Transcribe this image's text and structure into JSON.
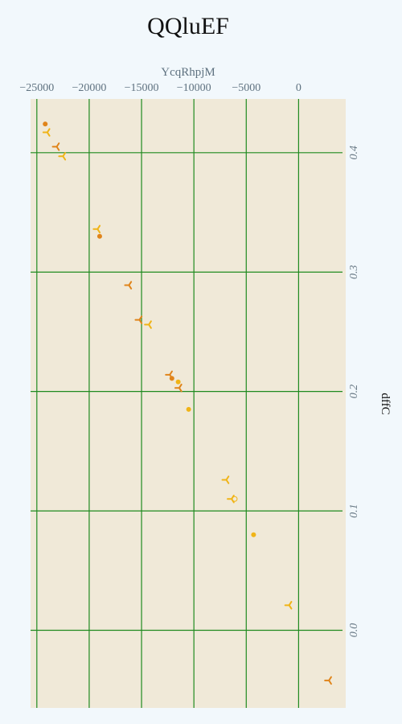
{
  "chart_data": {
    "type": "scatter",
    "title": "QQluEF",
    "xlabel": "YcqRhpjM",
    "ylabel": "dffC",
    "x_axis_position": "top",
    "y_axis_position": "right",
    "xlim": [
      -25600,
      4500
    ],
    "ylim": [
      -0.065,
      0.445
    ],
    "x_ticks": [
      -25000,
      -20000,
      -15000,
      -10000,
      -5000,
      0
    ],
    "x_tick_labels": [
      "−25000",
      "−20000",
      "−15000",
      "−10000",
      "−5000",
      "0"
    ],
    "y_ticks": [
      0.0,
      0.1,
      0.2,
      0.3,
      0.4
    ],
    "y_tick_labels": [
      "0.0",
      "0.1",
      "0.2",
      "0.3",
      "0.4"
    ],
    "grid": true,
    "colors": {
      "background": "#f2f8fc",
      "plot_area": "#f0e9d8",
      "grid": "#1f8a1f",
      "series_a": "#f0b417",
      "series_b": "#e0841a"
    },
    "points": [
      {
        "x": -24200,
        "y": 0.424,
        "marker": "circle",
        "color": "#e0841a"
      },
      {
        "x": -24000,
        "y": 0.417,
        "marker": "tri",
        "color": "#f0b417"
      },
      {
        "x": -23100,
        "y": 0.405,
        "marker": "tri",
        "color": "#e0841a"
      },
      {
        "x": -22500,
        "y": 0.397,
        "marker": "tri",
        "color": "#f0b417"
      },
      {
        "x": -19200,
        "y": 0.336,
        "marker": "tri",
        "color": "#f0b417"
      },
      {
        "x": -19000,
        "y": 0.33,
        "marker": "circle",
        "color": "#e0841a"
      },
      {
        "x": -16200,
        "y": 0.289,
        "marker": "tri",
        "color": "#e0841a"
      },
      {
        "x": -15200,
        "y": 0.26,
        "marker": "tri",
        "color": "#e0841a"
      },
      {
        "x": -14300,
        "y": 0.256,
        "marker": "tri",
        "color": "#f0b417"
      },
      {
        "x": -12300,
        "y": 0.214,
        "marker": "tri",
        "color": "#e0841a"
      },
      {
        "x": -12100,
        "y": 0.211,
        "marker": "circle",
        "color": "#e0841a"
      },
      {
        "x": -11500,
        "y": 0.208,
        "marker": "circle",
        "color": "#f0b417"
      },
      {
        "x": -11400,
        "y": 0.203,
        "marker": "tri",
        "color": "#e0841a"
      },
      {
        "x": -10500,
        "y": 0.185,
        "marker": "circle",
        "color": "#f0b417"
      },
      {
        "x": -6900,
        "y": 0.126,
        "marker": "tri",
        "color": "#f0b417"
      },
      {
        "x": -6400,
        "y": 0.11,
        "marker": "tri",
        "color": "#f0b417"
      },
      {
        "x": -6100,
        "y": 0.11,
        "marker": "ring",
        "color": "#f0b417"
      },
      {
        "x": -4300,
        "y": 0.08,
        "marker": "circle",
        "color": "#f0b417"
      },
      {
        "x": -900,
        "y": 0.021,
        "marker": "tri",
        "color": "#f0b417"
      },
      {
        "x": 2900,
        "y": -0.042,
        "marker": "tri",
        "color": "#e0841a"
      }
    ]
  }
}
